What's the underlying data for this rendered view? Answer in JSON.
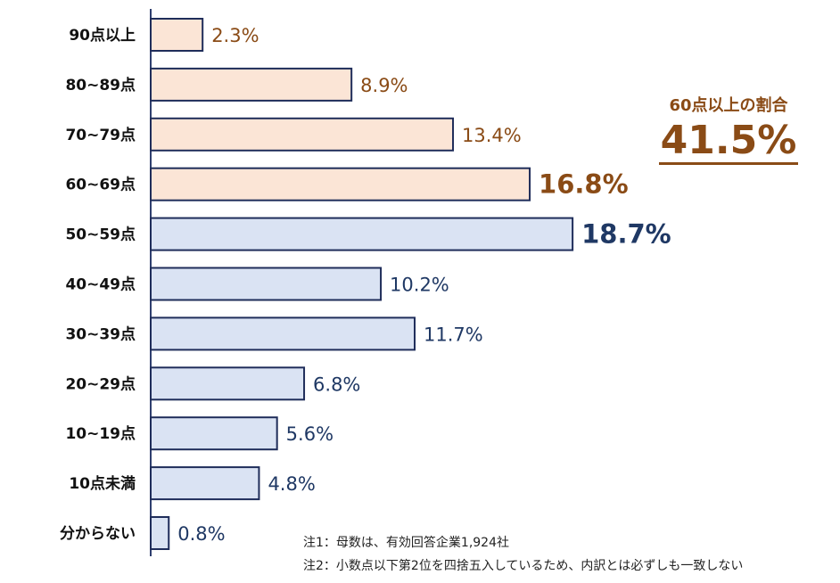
{
  "chart_data": {
    "type": "bar",
    "orientation": "horizontal",
    "categories": [
      "90点以上",
      "80~89点",
      "70~79点",
      "60~69点",
      "50~59点",
      "40~49点",
      "30~39点",
      "20~29点",
      "10~19点",
      "10点未満",
      "分からない"
    ],
    "values": [
      2.3,
      8.9,
      13.4,
      16.8,
      18.7,
      10.2,
      11.7,
      6.8,
      5.6,
      4.8,
      0.8
    ],
    "value_labels": [
      "2.3%",
      "8.9%",
      "13.4%",
      "16.8%",
      "18.7%",
      "10.2%",
      "11.7%",
      "6.8%",
      "5.6%",
      "4.8%",
      "0.8%"
    ],
    "groups": [
      "upper",
      "upper",
      "upper",
      "upper",
      "lower",
      "lower",
      "lower",
      "lower",
      "lower",
      "lower",
      "lower"
    ],
    "highlight": [
      false,
      false,
      false,
      true,
      true,
      false,
      false,
      false,
      false,
      false,
      false
    ],
    "colors": {
      "upper_fill": "#fbe5d6",
      "upper_text": "#8a4b16",
      "lower_fill": "#dae3f3",
      "lower_text": "#1f3864",
      "bar_stroke": "#1f2d5a",
      "axis": "#2f3f6f"
    },
    "grid": false,
    "xlim": [
      0,
      18.7
    ]
  },
  "summary": {
    "label": "60点以上の割合",
    "value": "41.5%"
  },
  "notes": [
    "注1：母数は、有効回答企業1,924社",
    "注2：小数点以下第2位を四捨五入しているため、内訳とは必ずしも一致しない"
  ]
}
